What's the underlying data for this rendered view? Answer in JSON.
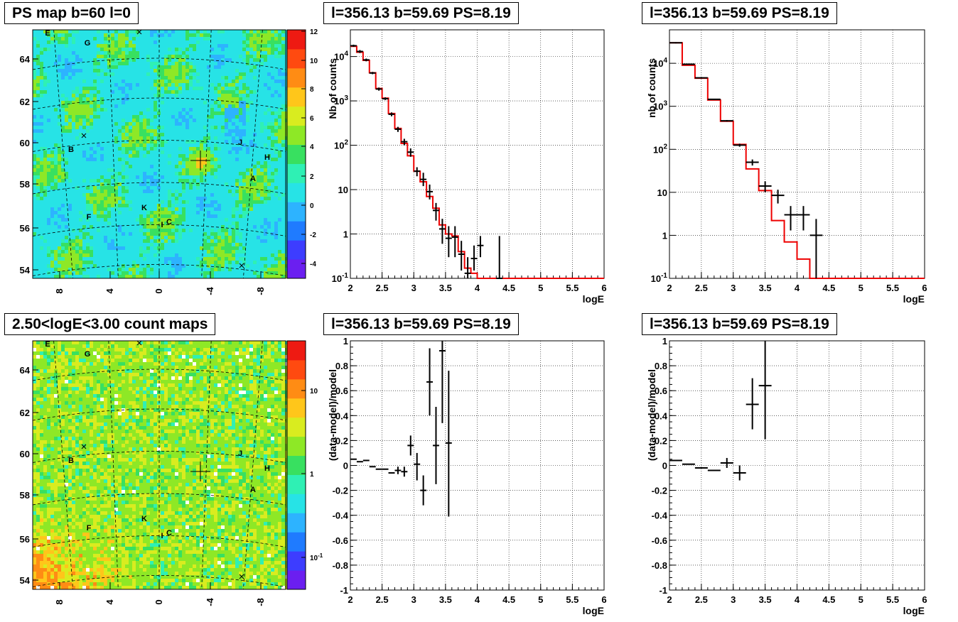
{
  "titles": {
    "map_top": "PS map b=60 l=0",
    "map_bottom": "2.50<logE<3.00 count maps",
    "spec_top_mid": "l=356.13 b=59.69 PS=8.19",
    "spec_top_right": "l=356.13 b=59.69 PS=8.19",
    "res_bot_mid": "l=356.13 b=59.69 PS=8.19",
    "res_bot_right": "l=356.13 b=59.69 PS=8.19"
  },
  "chart_data": [
    {
      "type": "heatmap",
      "title": "PS map b=60 l=0",
      "x_ticks": [
        "8",
        "4",
        "0",
        "-4",
        "-8"
      ],
      "y_ticks": [
        "54",
        "56",
        "58",
        "60",
        "62",
        "64"
      ],
      "colorbar_ticks": [
        "-4",
        "-2",
        "0",
        "2",
        "4",
        "6",
        "8",
        "10",
        "12"
      ],
      "colorbar_range": [
        -5,
        12
      ],
      "sources": [
        "E",
        "G",
        "B",
        "J",
        "H",
        "A",
        "F",
        "K",
        "I",
        "C"
      ],
      "colors": [
        "#6b1ff0",
        "#3d3dff",
        "#1f7bff",
        "#2db3ff",
        "#27e3e6",
        "#2ff0b4",
        "#38e060",
        "#8ee826",
        "#d9ec1f",
        "#ffc61a",
        "#ff8c14",
        "#ff4a10",
        "#ee1a12"
      ]
    },
    {
      "type": "heatmap",
      "title": "2.50<logE<3.00 count maps",
      "x_ticks": [
        "8",
        "4",
        "0",
        "-4",
        "-8"
      ],
      "y_ticks": [
        "54",
        "56",
        "58",
        "60",
        "62",
        "64"
      ],
      "colorbar_ticks": [
        "10^-1",
        "1",
        "10"
      ],
      "colorbar_scale": "log",
      "sources": [
        "E",
        "G",
        "B",
        "J",
        "H",
        "A",
        "F",
        "K",
        "I",
        "C"
      ]
    },
    {
      "type": "line",
      "title": "l=356.13 b=59.69 PS=8.19",
      "xlabel": "logE",
      "ylabel": "Nb of counts",
      "yscale": "log",
      "xlim": [
        2,
        6
      ],
      "ylim": [
        0.1,
        40000
      ],
      "grid": true,
      "x_ticks": [
        "2",
        "2.5",
        "3",
        "3.5",
        "4",
        "4.5",
        "5",
        "5.5",
        "6"
      ],
      "y_ticks": [
        "10^-1",
        "1",
        "10",
        "10^2",
        "10^3",
        "10^4"
      ],
      "model_edges": [
        2.0,
        2.1,
        2.2,
        2.3,
        2.4,
        2.5,
        2.6,
        2.7,
        2.8,
        2.9,
        3.0,
        3.1,
        3.2,
        3.3,
        3.4,
        3.5,
        3.6,
        3.7,
        3.8,
        3.9,
        4.0,
        4.1,
        6.0
      ],
      "model_values": [
        17000,
        12500,
        8200,
        4300,
        1900,
        1150,
        520,
        240,
        110,
        58,
        26,
        15,
        7,
        3.8,
        1.6,
        1.0,
        0.9,
        0.4,
        0.17,
        0.13,
        0.1,
        0.1
      ],
      "data": {
        "x": [
          2.05,
          2.15,
          2.25,
          2.35,
          2.45,
          2.55,
          2.65,
          2.75,
          2.85,
          2.95,
          3.05,
          3.15,
          3.25,
          3.35,
          3.45,
          3.55,
          3.65,
          3.75,
          3.85,
          3.95,
          4.05,
          4.35
        ],
        "y": [
          17500,
          13000,
          8400,
          4250,
          1850,
          1120,
          500,
          230,
          120,
          70,
          26,
          17,
          9,
          3.4,
          1.3,
          0.8,
          0.85,
          0.35,
          0.13,
          0.28,
          0.55,
          0.1
        ],
        "yerr_low": [
          16500,
          12000,
          7800,
          4000,
          1700,
          1050,
          450,
          200,
          100,
          55,
          20,
          12,
          6,
          2,
          0.6,
          0.3,
          0.3,
          0.15,
          0.1,
          0.15,
          0.3,
          0.1
        ],
        "yerr_high": [
          18500,
          14000,
          9000,
          4500,
          2000,
          1200,
          550,
          260,
          140,
          85,
          32,
          24,
          13,
          5,
          2.2,
          1.5,
          1.5,
          0.7,
          0.3,
          0.55,
          0.9,
          0.9
        ]
      }
    },
    {
      "type": "line",
      "title": "l=356.13 b=59.69 PS=8.19",
      "xlabel": "logE",
      "ylabel": "nb of counts",
      "yscale": "log",
      "xlim": [
        2,
        6
      ],
      "ylim": [
        0.1,
        60000
      ],
      "grid": true,
      "x_ticks": [
        "2",
        "2.5",
        "3",
        "3.5",
        "4",
        "4.5",
        "5",
        "5.5",
        "6"
      ],
      "y_ticks": [
        "10^-1",
        "1",
        "10",
        "10^2",
        "10^3",
        "10^4"
      ],
      "model_edges": [
        2.0,
        2.2,
        2.4,
        2.6,
        2.8,
        3.0,
        3.2,
        3.4,
        3.6,
        3.8,
        4.0,
        4.2,
        6.0
      ],
      "model_values": [
        30000,
        9000,
        4500,
        1400,
        450,
        130,
        35,
        11,
        2.2,
        0.7,
        0.28,
        0.1
      ],
      "data": {
        "x": [
          2.1,
          2.3,
          2.5,
          2.7,
          2.9,
          3.1,
          3.3,
          3.5,
          3.7,
          3.9,
          4.1,
          4.3
        ],
        "y": [
          30000,
          9500,
          4600,
          1450,
          460,
          125,
          50,
          14,
          8.5,
          3,
          3,
          1
        ],
        "yerr_low": [
          29000,
          9200,
          4450,
          1400,
          440,
          115,
          42,
          10,
          5.5,
          1.3,
          1.3,
          0.1
        ],
        "yerr_high": [
          31000,
          9800,
          4750,
          1500,
          480,
          135,
          58,
          18,
          11.5,
          4.8,
          4.8,
          2.4
        ]
      }
    },
    {
      "type": "scatter",
      "title": "l=356.13 b=59.69 PS=8.19",
      "xlabel": "logE",
      "ylabel": "(data-model)/model",
      "xlim": [
        2,
        6
      ],
      "ylim": [
        -1,
        1
      ],
      "grid": true,
      "x_ticks": [
        "2",
        "2.5",
        "3",
        "3.5",
        "4",
        "4.5",
        "5",
        "5.5",
        "6"
      ],
      "y_ticks": [
        "-1",
        "-0.8",
        "-0.6",
        "-0.4",
        "-0.2",
        "0",
        "0.2",
        "0.4",
        "0.6",
        "0.8",
        "1"
      ],
      "data": {
        "x": [
          2.05,
          2.15,
          2.25,
          2.35,
          2.45,
          2.55,
          2.65,
          2.75,
          2.85,
          2.95,
          3.05,
          3.15,
          3.25,
          3.35,
          3.45,
          3.55
        ],
        "y": [
          0.05,
          0.03,
          0.04,
          -0.01,
          -0.03,
          -0.03,
          -0.06,
          -0.04,
          -0.05,
          0.16,
          0.01,
          -0.2,
          0.67,
          0.16,
          0.92,
          0.18
        ],
        "yerr_low": [
          0.05,
          0.03,
          0.04,
          -0.01,
          -0.03,
          -0.03,
          -0.06,
          -0.07,
          -0.09,
          0.08,
          -0.12,
          -0.32,
          0.4,
          -0.15,
          0.34,
          -0.41
        ],
        "yerr_high": [
          0.05,
          0.03,
          0.04,
          -0.01,
          -0.03,
          -0.03,
          -0.06,
          -0.01,
          -0.01,
          0.24,
          0.1,
          -0.08,
          0.94,
          0.47,
          1.0,
          0.76
        ]
      }
    },
    {
      "type": "scatter",
      "title": "l=356.13 b=59.69 PS=8.19",
      "xlabel": "logE",
      "ylabel": "(data-model)/model",
      "xlim": [
        2,
        6
      ],
      "ylim": [
        -1,
        1
      ],
      "grid": true,
      "x_ticks": [
        "2",
        "2.5",
        "3",
        "3.5",
        "4",
        "4.5",
        "5",
        "5.5",
        "6"
      ],
      "y_ticks": [
        "-1",
        "-0.8",
        "-0.6",
        "-0.4",
        "-0.2",
        "0",
        "0.2",
        "0.4",
        "0.6",
        "0.8",
        "1"
      ],
      "data": {
        "x": [
          2.1,
          2.3,
          2.5,
          2.7,
          2.9,
          3.1,
          3.3,
          3.5
        ],
        "y": [
          0.04,
          0.01,
          -0.02,
          -0.04,
          0.02,
          -0.06,
          0.49,
          0.64
        ],
        "yerr_low": [
          0.04,
          0.01,
          -0.02,
          -0.04,
          -0.02,
          -0.12,
          0.29,
          0.21
        ],
        "yerr_high": [
          0.04,
          0.01,
          -0.02,
          -0.04,
          0.06,
          0.0,
          0.7,
          1.0
        ]
      }
    }
  ]
}
